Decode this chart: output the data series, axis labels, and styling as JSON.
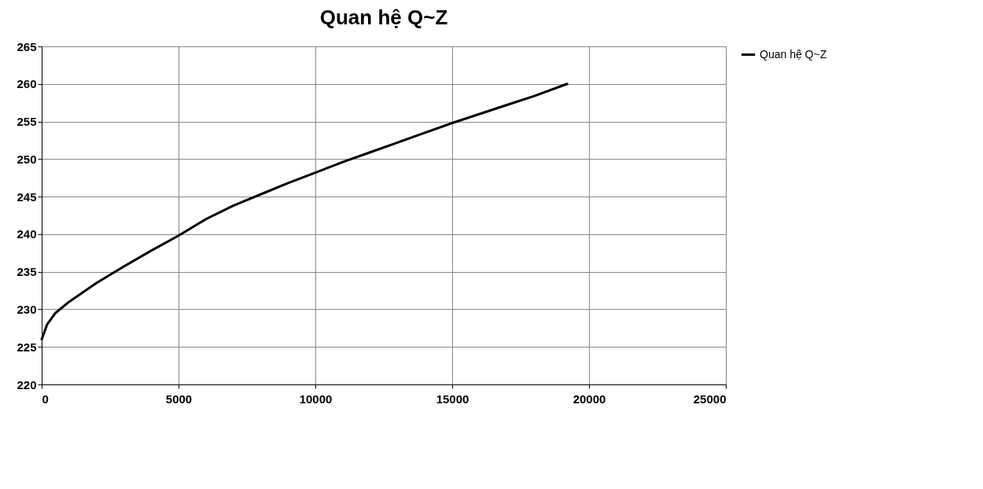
{
  "chart_data": {
    "type": "line",
    "title": "Quan hệ Q~Z",
    "x": [
      0,
      200,
      500,
      1000,
      2000,
      3000,
      4000,
      5000,
      6000,
      7000,
      8000,
      9000,
      10000,
      11000,
      12000,
      13000,
      14000,
      15000,
      16000,
      17000,
      18000,
      19200
    ],
    "series": [
      {
        "name": "Quan hệ Q~Z",
        "color": "#000000",
        "values": [
          226,
          228,
          229.5,
          231,
          233.5,
          235.7,
          237.8,
          239.8,
          242,
          243.8,
          245.3,
          246.8,
          248.2,
          249.6,
          250.9,
          252.2,
          253.5,
          254.8,
          256,
          257.2,
          258.4,
          260
        ]
      }
    ],
    "xlim": [
      0,
      25000
    ],
    "xticks": [
      0,
      5000,
      10000,
      15000,
      20000,
      25000
    ],
    "ylim": [
      220,
      265
    ],
    "yticks": [
      220,
      225,
      230,
      235,
      240,
      245,
      250,
      255,
      260,
      265
    ],
    "grid": true,
    "legend": "right",
    "marker": "none",
    "line_style": "solid"
  }
}
